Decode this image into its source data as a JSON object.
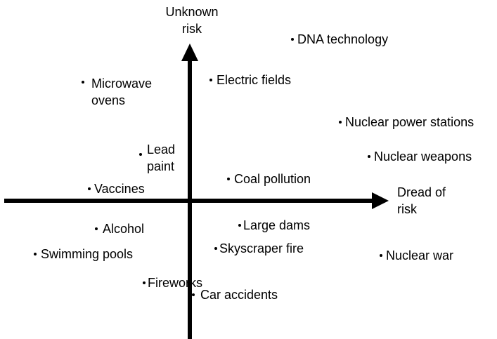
{
  "axes": {
    "vertical_label": "Unknown risk",
    "horizontal_label": "Dread of risk"
  },
  "nodes": [
    {
      "label": "DNA technology"
    },
    {
      "label": "Microwave ovens"
    },
    {
      "label": "Electric fields"
    },
    {
      "label": "Nuclear power stations"
    },
    {
      "label": "Lead paint"
    },
    {
      "label": "Nuclear weapons"
    },
    {
      "label": "Coal pollution"
    },
    {
      "label": "Vaccines"
    },
    {
      "label": "Alcohol"
    },
    {
      "label": "Large dams"
    },
    {
      "label": "Skyscraper fire"
    },
    {
      "label": "Swimming pools"
    },
    {
      "label": "Nuclear war"
    },
    {
      "label": "Fireworks"
    },
    {
      "label": "Car accidents"
    }
  ]
}
